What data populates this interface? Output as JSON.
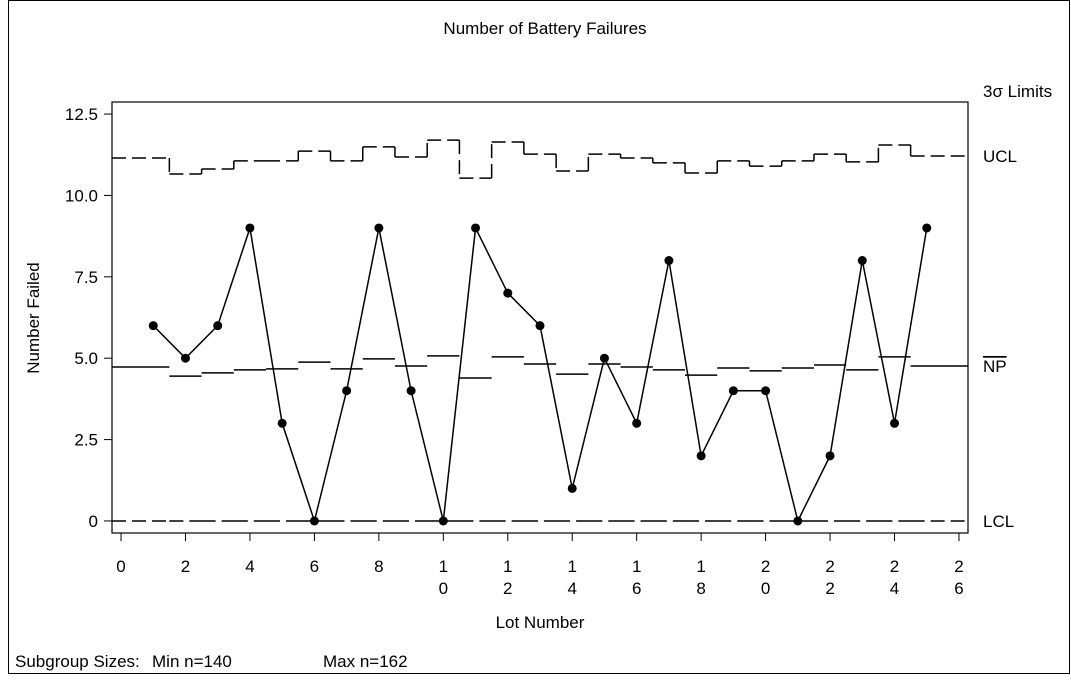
{
  "chart_data": {
    "type": "control",
    "title": "Number of Battery Failures",
    "x_label": "Lot Number",
    "y_label": "Number Failed",
    "limits_label": "3σ Limits",
    "ucl_label": "UCL",
    "center_label": "NP",
    "lcl_label": "LCL",
    "footer": [
      "Subgroup Sizes:",
      "Min n=140",
      "Max n=162"
    ],
    "x": [
      1,
      2,
      3,
      4,
      5,
      6,
      7,
      8,
      9,
      10,
      11,
      12,
      13,
      14,
      15,
      16,
      17,
      18,
      19,
      20,
      21,
      22,
      23,
      24,
      25
    ],
    "values": [
      6,
      5,
      6,
      9,
      3,
      0,
      4,
      9,
      4,
      0,
      9,
      7,
      6,
      1,
      5,
      3,
      8,
      2,
      4,
      4,
      0,
      2,
      8,
      3,
      9
    ],
    "ucl": [
      11.15,
      10.66,
      10.81,
      11.06,
      11.06,
      11.36,
      11.06,
      11.49,
      11.18,
      11.7,
      10.53,
      11.64,
      11.27,
      10.75,
      11.27,
      11.15,
      11.0,
      10.69,
      11.06,
      10.9,
      11.06,
      11.27,
      11.03,
      11.55,
      11.21
    ],
    "center": [
      4.73,
      4.45,
      4.55,
      4.64,
      4.67,
      4.88,
      4.67,
      4.98,
      4.76,
      5.07,
      4.39,
      5.04,
      4.82,
      4.51,
      4.82,
      4.73,
      4.64,
      4.48,
      4.7,
      4.61,
      4.7,
      4.79,
      4.64,
      5.04,
      4.76
    ],
    "lcl": [
      0,
      0,
      0,
      0,
      0,
      0,
      0,
      0,
      0,
      0,
      0,
      0,
      0,
      0,
      0,
      0,
      0,
      0,
      0,
      0,
      0,
      0,
      0,
      0,
      0
    ],
    "color": "#000000",
    "xlim": [
      -0.28,
      26.28
    ],
    "ylim": [
      -0.37,
      12.87
    ],
    "xticks": [
      0,
      2,
      4,
      6,
      8,
      10,
      12,
      14,
      16,
      18,
      20,
      22,
      24,
      26
    ],
    "yticks": [
      0,
      2.5,
      {
        "value": 5,
        "label": "5.0"
      },
      7.5,
      {
        "value": 10,
        "label": "10.0"
      },
      12.5
    ]
  }
}
